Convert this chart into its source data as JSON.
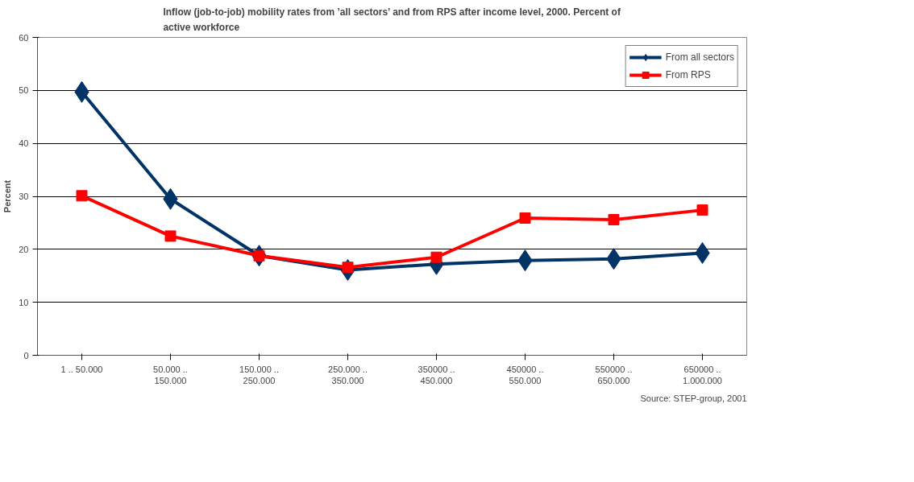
{
  "chart_data": {
    "type": "line",
    "title": "Inflow (job-to-job) mobility rates from ’all sectors’ and from RPS after income level, 2000. Percent of\nactive workforce",
    "ylabel": "Percent",
    "categories": [
      "1 .. 50.000",
      "50.000 ..\n150.000",
      "150.000 ..\n250.000",
      "250.000 ..\n350.000",
      "350000 ..\n450.000",
      "450000 ..\n550.000",
      "550000 ..\n650.000",
      "650000 ..\n1.000.000"
    ],
    "series": [
      {
        "name": "From all sectors",
        "color": "#003366",
        "marker": "diamond",
        "values": [
          49.7,
          29.5,
          18.8,
          16.1,
          17.2,
          17.9,
          18.2,
          19.3
        ]
      },
      {
        "name": "From RPS",
        "color": "#ff0000",
        "marker": "square",
        "values": [
          30.1,
          22.5,
          18.8,
          16.6,
          18.5,
          25.9,
          25.6,
          27.4
        ]
      }
    ],
    "ylim": [
      0,
      60
    ],
    "yticks": [
      0,
      10,
      20,
      30,
      40,
      50,
      60
    ],
    "grid": "y",
    "legend": "top right",
    "annotations": [
      "Source: STEP-group, 2001"
    ]
  }
}
